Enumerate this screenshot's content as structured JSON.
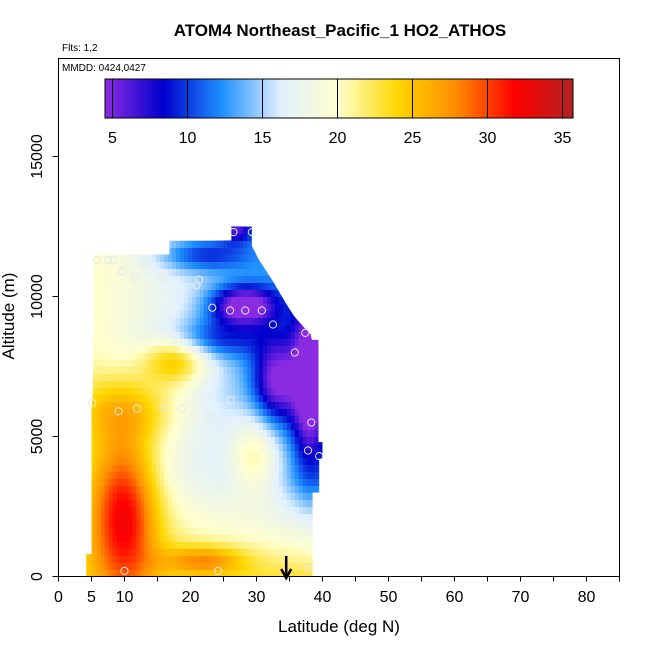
{
  "chart_data": {
    "type": "heatmap",
    "title": "ATOM4 Northeast_Pacific_1 HO2_ATHOS",
    "flights_label": "Flts: 1,2",
    "dates_label": "MMDD: 0424,0427",
    "xlabel": "Latitude (deg N)",
    "ylabel": "Altitude (m)",
    "xlim": [
      0,
      85
    ],
    "ylim": [
      0,
      18500
    ],
    "x_ticks": [
      0,
      5,
      10,
      20,
      30,
      40,
      50,
      60,
      70,
      80
    ],
    "x_ticks_minor": [
      15,
      25,
      35,
      45,
      55,
      65,
      75,
      85
    ],
    "y_ticks": [
      0,
      5000,
      10000,
      15000
    ],
    "colorbar": {
      "min": 4.5,
      "max": 35.7,
      "ticks": [
        5,
        10,
        15,
        20,
        25,
        30,
        35
      ],
      "colors": [
        "#8a2be2",
        "#0000cd",
        "#1e90ff",
        "#e0f0ff",
        "#ffffcc",
        "#ffd700",
        "#ff8c00",
        "#ff0000",
        "#b22222"
      ]
    },
    "marker_arrow_x": 34.5,
    "observations": [
      {
        "lat": 5.8,
        "alt": 11300
      },
      {
        "lat": 7.5,
        "alt": 11300
      },
      {
        "lat": 8.3,
        "alt": 11300
      },
      {
        "lat": 9.6,
        "alt": 10900
      },
      {
        "lat": 13.2,
        "alt": 11200
      },
      {
        "lat": 11.6,
        "alt": 10700
      },
      {
        "lat": 15.6,
        "alt": 10700
      },
      {
        "lat": 21.3,
        "alt": 10600
      },
      {
        "lat": 20.9,
        "alt": 10400
      },
      {
        "lat": 26.5,
        "alt": 12300
      },
      {
        "lat": 29.3,
        "alt": 12300
      },
      {
        "lat": 23.3,
        "alt": 9600
      },
      {
        "lat": 26.0,
        "alt": 9500
      },
      {
        "lat": 28.3,
        "alt": 9500
      },
      {
        "lat": 30.8,
        "alt": 9500
      },
      {
        "lat": 32.5,
        "alt": 9000
      },
      {
        "lat": 37.4,
        "alt": 8700
      },
      {
        "lat": 35.8,
        "alt": 8000
      },
      {
        "lat": 26.1,
        "alt": 6300
      },
      {
        "lat": 5.1,
        "alt": 6200
      },
      {
        "lat": 9.1,
        "alt": 5900
      },
      {
        "lat": 11.9,
        "alt": 6000
      },
      {
        "lat": 15.9,
        "alt": 6000
      },
      {
        "lat": 18.6,
        "alt": 6000
      },
      {
        "lat": 23.1,
        "alt": 5700
      },
      {
        "lat": 38.3,
        "alt": 5500
      },
      {
        "lat": 37.8,
        "alt": 4500
      },
      {
        "lat": 39.5,
        "alt": 4300
      },
      {
        "lat": 10.0,
        "alt": 200
      },
      {
        "lat": 24.2,
        "alt": 200
      },
      {
        "lat": 37.8,
        "alt": 300
      }
    ]
  }
}
